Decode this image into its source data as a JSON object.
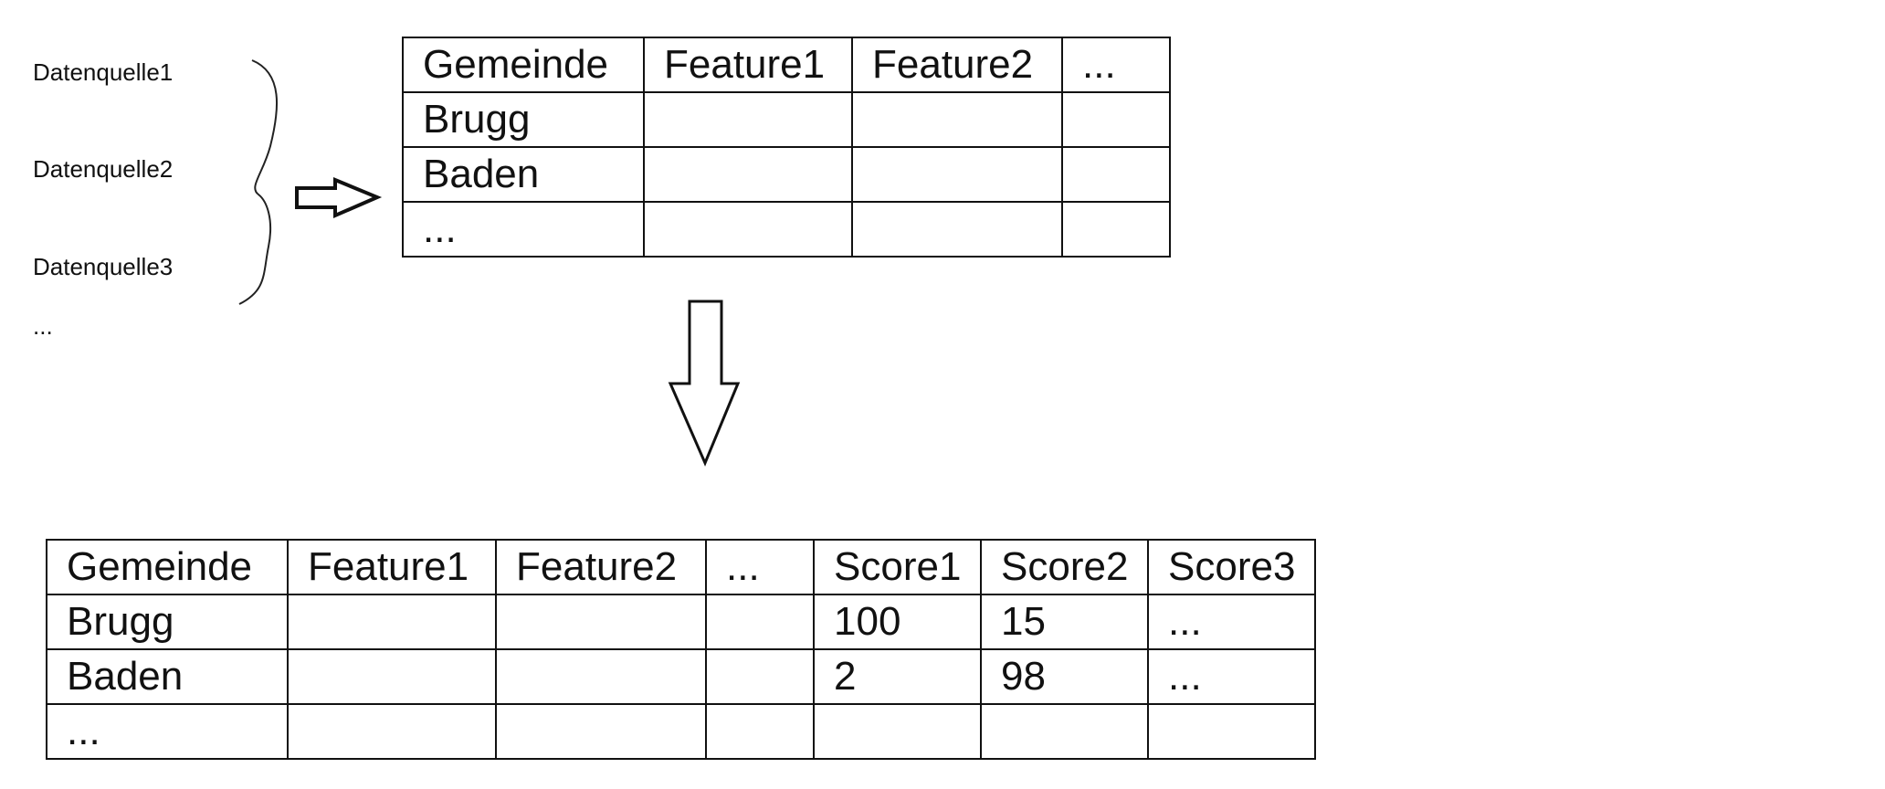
{
  "sources": [
    "Datenquelle1",
    "Datenquelle2",
    "Datenquelle3",
    "..."
  ],
  "top_table": {
    "headers": [
      "Gemeinde",
      "Feature1",
      "Feature2",
      "..."
    ],
    "rows": [
      [
        "Brugg",
        "",
        "",
        ""
      ],
      [
        "Baden",
        "",
        "",
        ""
      ],
      [
        "...",
        "",
        "",
        ""
      ]
    ]
  },
  "bottom_table": {
    "headers": [
      "Gemeinde",
      "Feature1",
      "Feature2",
      "...",
      "Score1",
      "Score2",
      "Score3"
    ],
    "rows": [
      [
        "Brugg",
        "",
        "",
        "",
        "100",
        "15",
        "..."
      ],
      [
        "Baden",
        "",
        "",
        "",
        "2",
        "98",
        "..."
      ],
      [
        "...",
        "",
        "",
        "",
        "",
        "",
        ""
      ]
    ]
  }
}
